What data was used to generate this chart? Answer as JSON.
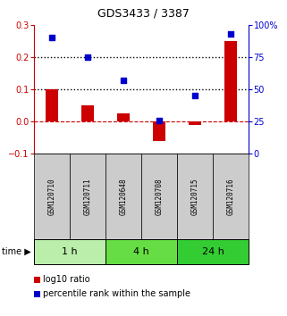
{
  "title": "GDS3433 / 3387",
  "samples": [
    "GSM120710",
    "GSM120711",
    "GSM120648",
    "GSM120708",
    "GSM120715",
    "GSM120716"
  ],
  "log10_ratio": [
    0.1,
    0.05,
    0.025,
    -0.06,
    -0.012,
    0.25
  ],
  "percentile_rank": [
    90,
    75,
    57,
    26,
    45,
    93
  ],
  "ylim_left": [
    -0.1,
    0.3
  ],
  "ylim_right": [
    0,
    100
  ],
  "yticks_left": [
    -0.1,
    0.0,
    0.1,
    0.2,
    0.3
  ],
  "yticks_right": [
    0,
    25,
    50,
    75,
    100
  ],
  "ytick_labels_right": [
    "0",
    "25",
    "50",
    "75",
    "100%"
  ],
  "bar_color": "#cc0000",
  "dot_color": "#0000cc",
  "bar_width": 0.35,
  "time_groups": [
    {
      "label": "1 h",
      "n": 2,
      "color": "#bbeeaa"
    },
    {
      "label": "4 h",
      "n": 2,
      "color": "#66dd44"
    },
    {
      "label": "24 h",
      "n": 2,
      "color": "#33cc33"
    }
  ],
  "sample_box_color": "#cccccc",
  "legend_red_label": "log10 ratio",
  "legend_blue_label": "percentile rank within the sample",
  "background_color": "#ffffff"
}
